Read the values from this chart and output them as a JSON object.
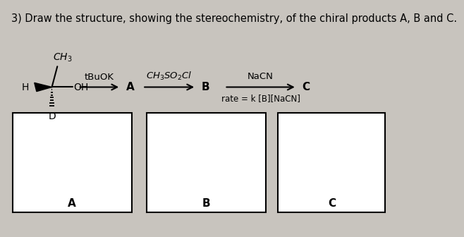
{
  "background_color": "#c8c4be",
  "title": "3) Draw the structure, showing the stereochemistry, of the chiral products A, B and C.",
  "title_fontsize": 10.5,
  "reagent1": "tBuOK",
  "reagent2": "CH₃SO₂Cl",
  "reagent3": "NaCN",
  "reagent3_sub": "rate = k [B][NaCN]",
  "label_A": "A",
  "label_B": "B",
  "label_C": "C",
  "box_label_A": "A",
  "box_label_B": "B",
  "box_label_C": "C",
  "box_color": "white",
  "box_edge_color": "black",
  "text_color": "black",
  "h_label": "H",
  "d_label": "D",
  "oh_label": "OH",
  "ch3_label": "CH₃"
}
